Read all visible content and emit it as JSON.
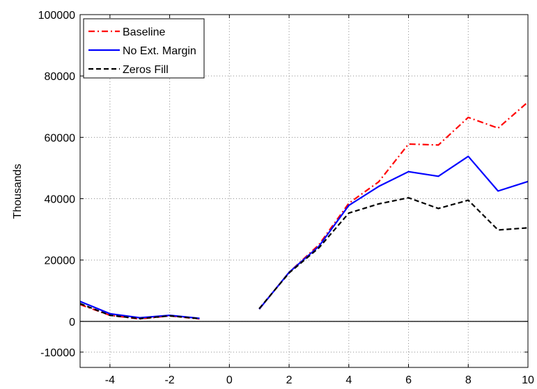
{
  "chart_data": {
    "type": "line",
    "title": "",
    "xlabel": "",
    "ylabel": "Thousands",
    "xlim": [
      -5,
      10
    ],
    "ylim": [
      -15000,
      100000
    ],
    "x_ticks": [
      -4,
      -2,
      0,
      2,
      4,
      6,
      8,
      10
    ],
    "y_ticks": [
      -10000,
      0,
      20000,
      40000,
      60000,
      80000,
      100000
    ],
    "grid": true,
    "zero_line": true,
    "legend_position": "top-left",
    "series": [
      {
        "name": "Baseline",
        "color": "#ff0000",
        "style": "dash-dot",
        "segments": [
          {
            "x": [
              -5,
              -4,
              -3,
              -2,
              -1
            ],
            "y": [
              5500,
              2000,
              800,
              1800,
              800
            ]
          },
          {
            "x": [
              1,
              2,
              3,
              4,
              5,
              6,
              7,
              8,
              9,
              10
            ],
            "y": [
              4000,
              16000,
              25000,
              38500,
              45500,
              57800,
              57500,
              66500,
              63000,
              71500
            ]
          }
        ]
      },
      {
        "name": "No Ext. Margin",
        "color": "#0000ff",
        "style": "solid",
        "segments": [
          {
            "x": [
              -5,
              -4,
              -3,
              -2,
              -1
            ],
            "y": [
              6500,
              2500,
              1200,
              2000,
              1000
            ]
          },
          {
            "x": [
              1,
              2,
              3,
              4,
              5,
              6,
              7,
              8,
              9,
              10
            ],
            "y": [
              4000,
              16000,
              24500,
              37800,
              44000,
              48800,
              47300,
              53800,
              42500,
              45600
            ]
          }
        ]
      },
      {
        "name": "Zeros Fill",
        "color": "#000000",
        "style": "dashed",
        "segments": [
          {
            "x": [
              -5,
              -4,
              -3,
              -2,
              -1
            ],
            "y": [
              5800,
              2000,
              900,
              1800,
              900
            ]
          },
          {
            "x": [
              1,
              2,
              3,
              4,
              5,
              6,
              7,
              8,
              9,
              10
            ],
            "y": [
              4200,
              15800,
              24000,
              35300,
              38300,
              40300,
              36800,
              39500,
              29800,
              30500
            ]
          }
        ]
      }
    ]
  }
}
